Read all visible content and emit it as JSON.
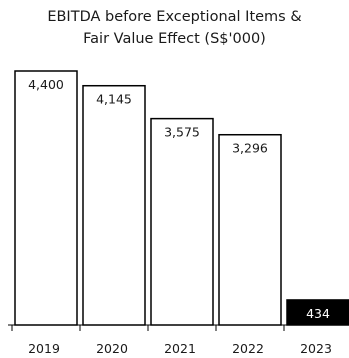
{
  "chart_data": {
    "type": "bar",
    "title_line1": "EBITDA before Exceptional Items &",
    "title_line2": "Fair Value Effect (S$'000)",
    "categories": [
      "2019",
      "2020",
      "2021",
      "2022",
      "2023"
    ],
    "values": [
      4400,
      4145,
      3575,
      3296,
      434
    ],
    "value_labels": [
      "4,400",
      "4,145",
      "3,575",
      "3,296",
      "434"
    ],
    "bar_styles": [
      "outline",
      "outline",
      "outline",
      "outline",
      "filled"
    ],
    "xlabel": "",
    "ylabel": "",
    "ylim": [
      0,
      4400
    ],
    "grid": false,
    "colors": {
      "bar_fill": "#ffffff",
      "bar_stroke": "#000000",
      "highlight_fill": "#000000",
      "highlight_text": "#ffffff"
    }
  }
}
